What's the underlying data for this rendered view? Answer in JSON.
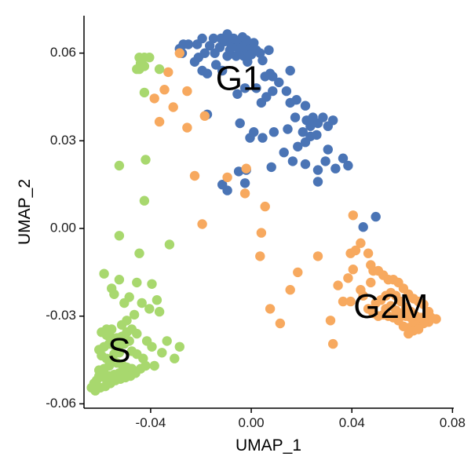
{
  "chart_data": {
    "type": "scatter",
    "xlabel": "UMAP_1",
    "ylabel": "UMAP_2",
    "xlim": [
      -0.0665,
      0.0805
    ],
    "ylim": [
      -0.0615,
      0.0728
    ],
    "x_ticks": [
      {
        "value": -0.04,
        "label": "-0.04"
      },
      {
        "value": 0.0,
        "label": "0.00"
      },
      {
        "value": 0.04,
        "label": "0.04"
      },
      {
        "value": 0.08,
        "label": "0.08"
      }
    ],
    "y_ticks": [
      {
        "value": 0.06,
        "label": "0.06"
      },
      {
        "value": 0.03,
        "label": "0.03"
      },
      {
        "value": 0.0,
        "label": "0.00"
      },
      {
        "value": -0.03,
        "label": "-0.03"
      },
      {
        "value": -0.06,
        "label": "-0.06"
      }
    ],
    "grid": false,
    "legend": "none",
    "labels": [
      {
        "text": "G1",
        "x": -0.005,
        "y": 0.0505
      },
      {
        "text": "S",
        "x": -0.0525,
        "y": -0.0425
      },
      {
        "text": "G2M",
        "x": 0.0555,
        "y": -0.0275
      }
    ],
    "series": [
      {
        "color": "#4a74b5",
        "points": [
          [
            -0.0285,
            0.0615
          ],
          [
            -0.0275,
            0.06
          ],
          [
            -0.027,
            0.063
          ],
          [
            -0.025,
            0.063
          ],
          [
            -0.0215,
            0.063
          ],
          [
            -0.021,
            0.0585
          ],
          [
            -0.0195,
            0.065
          ],
          [
            -0.0195,
            0.054
          ],
          [
            -0.0185,
            0.06
          ],
          [
            -0.0165,
            0.0625
          ],
          [
            -0.015,
            0.065
          ],
          [
            -0.0145,
            0.06
          ],
          [
            -0.0125,
            0.062
          ],
          [
            -0.012,
            0.065
          ],
          [
            -0.0105,
            0.064
          ],
          [
            -0.0095,
            0.0665
          ],
          [
            -0.0085,
            0.061
          ],
          [
            -0.008,
            0.063
          ],
          [
            -0.007,
            0.065
          ],
          [
            -0.006,
            0.059
          ],
          [
            -0.0055,
            0.062
          ],
          [
            -0.005,
            0.064
          ],
          [
            -0.0045,
            0.0615
          ],
          [
            -0.0035,
            0.0655
          ],
          [
            -0.003,
            0.059
          ],
          [
            -0.0025,
            0.063
          ],
          [
            -0.002,
            0.0645
          ],
          [
            -0.0015,
            0.0605
          ],
          [
            0.0,
            0.062
          ],
          [
            0.0,
            0.0595
          ],
          [
            0.001,
            0.0635
          ],
          [
            0.002,
            0.061
          ],
          [
            0.0035,
            0.06
          ],
          [
            -0.0015,
            0.057
          ],
          [
            0.0045,
            0.0575
          ],
          [
            0.0055,
            0.052
          ],
          [
            0.007,
            0.061
          ],
          [
            0.0075,
            0.053
          ],
          [
            0.0085,
            0.047
          ],
          [
            -0.0115,
            0.054
          ],
          [
            -0.014,
            0.056
          ],
          [
            -0.0175,
            0.053
          ],
          [
            -0.0225,
            0.057
          ],
          [
            -0.0055,
            0.046
          ],
          [
            -0.0025,
            0.048
          ],
          [
            0.002,
            0.048
          ],
          [
            0.004,
            0.043
          ],
          [
            0.006,
            0.045
          ],
          [
            0.0085,
            0.052
          ],
          [
            0.011,
            0.05
          ],
          [
            0.014,
            0.047
          ],
          [
            0.0155,
            0.043
          ],
          [
            0.018,
            0.044
          ],
          [
            0.0175,
            0.038
          ],
          [
            0.0215,
            0.042
          ],
          [
            0.022,
            0.037
          ],
          [
            0.0245,
            0.038
          ],
          [
            0.0265,
            0.036
          ],
          [
            0.0235,
            0.035
          ],
          [
            0.0285,
            0.038
          ],
          [
            0.026,
            0.032
          ],
          [
            0.0305,
            0.035
          ],
          [
            0.0235,
            0.0315
          ],
          [
            0.0205,
            0.033
          ],
          [
            0.0145,
            0.034
          ],
          [
            0.009,
            0.033
          ],
          [
            0.0045,
            0.031
          ],
          [
            -0.0005,
            0.031
          ],
          [
            0.001,
            0.033
          ],
          [
            -0.0045,
            0.036
          ],
          [
            -0.0175,
            0.039
          ],
          [
            0.013,
            0.026
          ],
          [
            0.008,
            0.021
          ],
          [
            0.0165,
            0.023
          ],
          [
            0.0185,
            0.028
          ],
          [
            0.0215,
            0.022
          ],
          [
            0.0265,
            0.02
          ],
          [
            0.0295,
            0.023
          ],
          [
            0.0265,
            0.016
          ],
          [
            0.0305,
            0.027
          ],
          [
            0.0335,
            0.0205
          ],
          [
            0.0365,
            0.024
          ],
          [
            0.0385,
            0.0215
          ],
          [
            0.0215,
            0.0295
          ],
          [
            0.0325,
            0.037
          ],
          [
            -0.0115,
            0.015
          ],
          [
            -0.0095,
            0.013
          ],
          [
            -0.005,
            0.0195
          ],
          [
            -0.002,
            0.02
          ],
          [
            -0.0025,
            0.0155
          ],
          [
            0.0445,
            0.0005
          ],
          [
            0.0495,
            0.004
          ],
          [
            -0.0095,
            0.059
          ],
          [
            0.0155,
            0.054
          ]
        ]
      },
      {
        "color": "#f7a95f",
        "points": [
          [
            -0.0285,
            0.06
          ],
          [
            -0.033,
            0.0535
          ],
          [
            -0.0255,
            0.047
          ],
          [
            -0.0345,
            0.0475
          ],
          [
            -0.0385,
            0.0445
          ],
          [
            -0.031,
            0.0415
          ],
          [
            -0.0365,
            0.0365
          ],
          [
            -0.0255,
            0.0345
          ],
          [
            -0.0185,
            0.0385
          ],
          [
            -0.0225,
            0.018
          ],
          [
            -0.0195,
            0.0015
          ],
          [
            -0.0095,
            0.0175
          ],
          [
            -0.002,
            0.0205
          ],
          [
            -0.0025,
            0.012
          ],
          [
            0.0055,
            0.0075
          ],
          [
            0.004,
            -0.0015
          ],
          [
            0.0035,
            -0.0095
          ],
          [
            0.0075,
            -0.0275
          ],
          [
            0.0115,
            -0.0325
          ],
          [
            0.0155,
            -0.021
          ],
          [
            0.0185,
            -0.015
          ],
          [
            0.0265,
            -0.0095
          ],
          [
            0.0315,
            -0.0315
          ],
          [
            0.0325,
            -0.0395
          ],
          [
            0.0345,
            -0.0195
          ],
          [
            0.0365,
            -0.025
          ],
          [
            0.0395,
            -0.025
          ],
          [
            0.0385,
            -0.017
          ],
          [
            0.0405,
            -0.014
          ],
          [
            0.0395,
            -0.0085
          ],
          [
            0.0415,
            -0.0075
          ],
          [
            0.0435,
            -0.005
          ],
          [
            0.0405,
            0.0045
          ],
          [
            0.0435,
            -0.021
          ],
          [
            0.0445,
            -0.023
          ],
          [
            0.0475,
            -0.0185
          ],
          [
            0.0485,
            -0.0145
          ],
          [
            0.0475,
            -0.0125
          ],
          [
            0.0465,
            -0.0085
          ],
          [
            0.0505,
            -0.0145
          ],
          [
            0.0525,
            -0.016
          ],
          [
            0.0545,
            -0.0175
          ],
          [
            0.0565,
            -0.0175
          ],
          [
            0.0585,
            -0.0185
          ],
          [
            0.0605,
            -0.0205
          ],
          [
            0.0625,
            -0.0225
          ],
          [
            0.0645,
            -0.024
          ],
          [
            0.0665,
            -0.025
          ],
          [
            0.0685,
            -0.026
          ],
          [
            0.0705,
            -0.0285
          ],
          [
            0.0715,
            -0.0305
          ],
          [
            0.0705,
            -0.032
          ],
          [
            0.0685,
            -0.0325
          ],
          [
            0.0665,
            -0.033
          ],
          [
            0.0645,
            -0.032
          ],
          [
            0.0625,
            -0.034
          ],
          [
            0.0605,
            -0.0335
          ],
          [
            0.0585,
            -0.0315
          ],
          [
            0.0565,
            -0.0305
          ],
          [
            0.0545,
            -0.03
          ],
          [
            0.0525,
            -0.0295
          ],
          [
            0.0505,
            -0.03
          ],
          [
            0.0485,
            -0.029
          ],
          [
            0.0465,
            -0.0275
          ],
          [
            0.0495,
            -0.0255
          ],
          [
            0.0515,
            -0.0245
          ],
          [
            0.0535,
            -0.023
          ],
          [
            0.0555,
            -0.022
          ],
          [
            0.0575,
            -0.023
          ],
          [
            0.0595,
            -0.025
          ],
          [
            0.0615,
            -0.027
          ],
          [
            0.0635,
            -0.0285
          ],
          [
            0.0655,
            -0.03
          ],
          [
            0.0675,
            -0.0305
          ],
          [
            0.0695,
            -0.03
          ],
          [
            0.0555,
            -0.0265
          ],
          [
            0.0575,
            -0.028
          ],
          [
            0.0595,
            -0.029
          ],
          [
            0.0615,
            -0.03
          ],
          [
            0.0635,
            -0.0305
          ],
          [
            0.0535,
            -0.0275
          ],
          [
            0.0645,
            -0.035
          ],
          [
            0.0625,
            -0.036
          ],
          [
            0.0665,
            -0.0345
          ],
          [
            0.0735,
            -0.031
          ]
        ]
      },
      {
        "color": "#a8d86e",
        "points": [
          [
            -0.0445,
            0.0585
          ],
          [
            -0.0435,
            0.058
          ],
          [
            -0.0425,
            0.0585
          ],
          [
            -0.0405,
            0.0585
          ],
          [
            -0.044,
            0.0565
          ],
          [
            -0.0445,
            0.0545
          ],
          [
            -0.0425,
            0.0555
          ],
          [
            -0.0455,
            0.0545
          ],
          [
            -0.0365,
            0.0545
          ],
          [
            -0.0425,
            0.0465
          ],
          [
            -0.0525,
            0.0215
          ],
          [
            -0.042,
            0.0235
          ],
          [
            -0.0425,
            0.0095
          ],
          [
            -0.0525,
            -0.0025
          ],
          [
            -0.0325,
            -0.0055
          ],
          [
            -0.0445,
            -0.0085
          ],
          [
            -0.0585,
            -0.0155
          ],
          [
            -0.0525,
            -0.0175
          ],
          [
            -0.0555,
            -0.0205
          ],
          [
            -0.0545,
            -0.0225
          ],
          [
            -0.0505,
            -0.0255
          ],
          [
            -0.0485,
            -0.0235
          ],
          [
            -0.0455,
            -0.0185
          ],
          [
            -0.0395,
            -0.019
          ],
          [
            -0.0435,
            -0.0255
          ],
          [
            -0.0405,
            -0.0275
          ],
          [
            -0.0375,
            -0.0245
          ],
          [
            -0.0365,
            -0.0285
          ],
          [
            -0.0465,
            -0.0295
          ],
          [
            -0.0495,
            -0.0315
          ],
          [
            -0.0515,
            -0.033
          ],
          [
            -0.0555,
            -0.0345
          ],
          [
            -0.0575,
            -0.0345
          ],
          [
            -0.0595,
            -0.0355
          ],
          [
            -0.0575,
            -0.0365
          ],
          [
            -0.0555,
            -0.0375
          ],
          [
            -0.0535,
            -0.0375
          ],
          [
            -0.0515,
            -0.037
          ],
          [
            -0.0495,
            -0.0355
          ],
          [
            -0.0475,
            -0.0345
          ],
          [
            -0.0455,
            -0.036
          ],
          [
            -0.0485,
            -0.0385
          ],
          [
            -0.0505,
            -0.0395
          ],
          [
            -0.0525,
            -0.04
          ],
          [
            -0.0545,
            -0.04
          ],
          [
            -0.0565,
            -0.0395
          ],
          [
            -0.0585,
            -0.0405
          ],
          [
            -0.0605,
            -0.0415
          ],
          [
            -0.0595,
            -0.0435
          ],
          [
            -0.0575,
            -0.0445
          ],
          [
            -0.0555,
            -0.045
          ],
          [
            -0.0535,
            -0.046
          ],
          [
            -0.0515,
            -0.0465
          ],
          [
            -0.0495,
            -0.0475
          ],
          [
            -0.0475,
            -0.048
          ],
          [
            -0.0505,
            -0.049
          ],
          [
            -0.0525,
            -0.0495
          ],
          [
            -0.0545,
            -0.05
          ],
          [
            -0.0565,
            -0.0505
          ],
          [
            -0.0585,
            -0.051
          ],
          [
            -0.0605,
            -0.0505
          ],
          [
            -0.0615,
            -0.052
          ],
          [
            -0.0625,
            -0.053
          ],
          [
            -0.0635,
            -0.0545
          ],
          [
            -0.062,
            -0.0555
          ],
          [
            -0.06,
            -0.0545
          ],
          [
            -0.058,
            -0.054
          ],
          [
            -0.056,
            -0.053
          ],
          [
            -0.054,
            -0.052
          ],
          [
            -0.052,
            -0.0515
          ],
          [
            -0.05,
            -0.051
          ],
          [
            -0.048,
            -0.0505
          ],
          [
            -0.046,
            -0.0495
          ],
          [
            -0.044,
            -0.048
          ],
          [
            -0.042,
            -0.047
          ],
          [
            -0.043,
            -0.0445
          ],
          [
            -0.0455,
            -0.043
          ],
          [
            -0.0475,
            -0.042
          ],
          [
            -0.0415,
            -0.0385
          ],
          [
            -0.0395,
            -0.0405
          ],
          [
            -0.0385,
            -0.047
          ],
          [
            -0.0355,
            -0.0425
          ],
          [
            -0.0305,
            -0.0445
          ],
          [
            -0.0285,
            -0.0405
          ],
          [
            -0.0335,
            -0.0385
          ],
          [
            -0.0545,
            -0.043
          ],
          [
            -0.0565,
            -0.047
          ],
          [
            -0.0585,
            -0.048
          ],
          [
            -0.0605,
            -0.0485
          ],
          [
            -0.0525,
            -0.0425
          ]
        ]
      }
    ]
  }
}
